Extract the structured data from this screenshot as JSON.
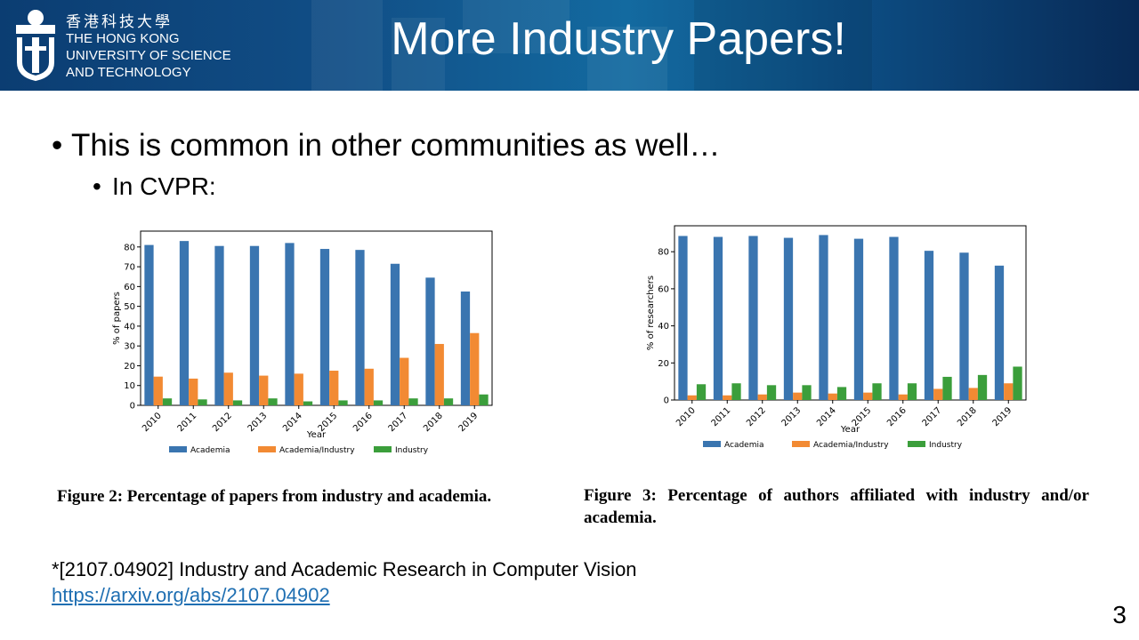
{
  "header": {
    "uni_zh": "香港科技大學",
    "uni_en_lines": [
      "THE HONG KONG",
      "UNIVERSITY OF SCIENCE",
      "AND TECHNOLOGY"
    ],
    "title": "More Industry Papers!"
  },
  "bullets": {
    "main": "This is common in other communities as well…",
    "sub": "In CVPR:"
  },
  "colors": {
    "academia": "#3a75b0",
    "academia_industry": "#f28a33",
    "industry": "#3b9e3b"
  },
  "chart_data": [
    {
      "type": "bar",
      "xlabel": "Year",
      "ylabel": "% of papers",
      "ylim": [
        0,
        88
      ],
      "yticks": [
        0,
        10,
        20,
        30,
        40,
        50,
        60,
        70,
        80
      ],
      "categories": [
        "2010",
        "2011",
        "2012",
        "2013",
        "2014",
        "2015",
        "2016",
        "2017",
        "2018",
        "2019"
      ],
      "series": [
        {
          "name": "Academia",
          "values": [
            81,
            83,
            80.5,
            80.5,
            82,
            79,
            78.5,
            71.5,
            64.5,
            57.5
          ]
        },
        {
          "name": "Academia/Industry",
          "values": [
            14.5,
            13.5,
            16.5,
            15,
            16,
            17.5,
            18.5,
            24,
            31,
            36.5
          ]
        },
        {
          "name": "Industry",
          "values": [
            3.5,
            3,
            2.5,
            3.5,
            2,
            2.5,
            2.5,
            3.5,
            3.5,
            5.5
          ]
        }
      ],
      "legend": "bottom",
      "caption": "Figure 2: Percentage of papers from industry and academia."
    },
    {
      "type": "bar",
      "xlabel": "Year",
      "ylabel": "% of researchers",
      "ylim": [
        0,
        94
      ],
      "yticks": [
        0,
        20,
        40,
        60,
        80
      ],
      "categories": [
        "2010",
        "2011",
        "2012",
        "2013",
        "2014",
        "2015",
        "2016",
        "2017",
        "2018",
        "2019"
      ],
      "series": [
        {
          "name": "Academia",
          "values": [
            88.5,
            88,
            88.5,
            87.5,
            89,
            87,
            88,
            80.5,
            79.5,
            72.5
          ]
        },
        {
          "name": "Academia/Industry",
          "values": [
            2.5,
            2.5,
            3,
            4,
            3.5,
            4,
            3,
            6,
            6.5,
            9
          ]
        },
        {
          "name": "Industry",
          "values": [
            8.5,
            9,
            8,
            8,
            7,
            9,
            9,
            12.5,
            13.5,
            18
          ]
        }
      ],
      "legend": "bottom",
      "caption": "Figure 3: Percentage of authors affiliated with industry and/or academia."
    }
  ],
  "reference": {
    "text": "*[2107.04902] Industry and Academic Research in Computer Vision",
    "link": "https://arxiv.org/abs/2107.04902"
  },
  "page_number": "3"
}
